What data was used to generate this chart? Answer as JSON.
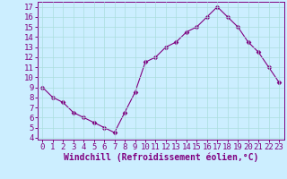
{
  "x": [
    0,
    1,
    2,
    3,
    4,
    5,
    6,
    7,
    8,
    9,
    10,
    11,
    12,
    13,
    14,
    15,
    16,
    17,
    18,
    19,
    20,
    21,
    22,
    23
  ],
  "y": [
    9,
    8,
    7.5,
    6.5,
    6,
    5.5,
    5,
    4.5,
    6.5,
    8.5,
    11.5,
    12,
    13,
    13.5,
    14.5,
    15,
    16,
    17,
    16,
    15,
    13.5,
    12.5,
    11,
    9.5
  ],
  "line_color": "#800080",
  "marker": "D",
  "marker_size": 2.5,
  "bg_color": "#cceeff",
  "grid_color": "#aadddd",
  "xlabel": "Windchill (Refroidissement éolien,°C)",
  "xlabel_fontsize": 7,
  "tick_fontsize": 6.5,
  "ylim": [
    3.8,
    17.5
  ],
  "xlim": [
    -0.5,
    23.5
  ],
  "yticks": [
    4,
    5,
    6,
    7,
    8,
    9,
    10,
    11,
    12,
    13,
    14,
    15,
    16,
    17
  ],
  "xticks": [
    0,
    1,
    2,
    3,
    4,
    5,
    6,
    7,
    8,
    9,
    10,
    11,
    12,
    13,
    14,
    15,
    16,
    17,
    18,
    19,
    20,
    21,
    22,
    23
  ]
}
